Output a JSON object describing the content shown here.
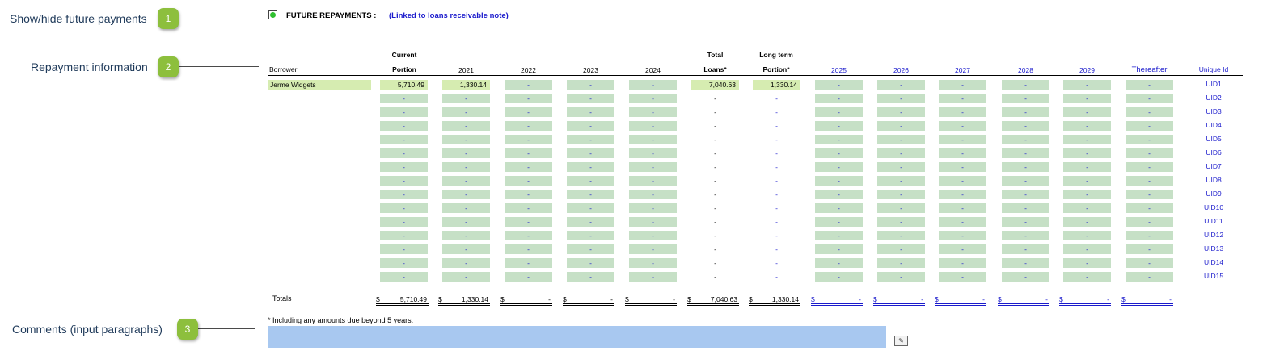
{
  "callouts": [
    {
      "number": "1",
      "label": "Show/hide future payments"
    },
    {
      "number": "2",
      "label": "Repayment information"
    },
    {
      "number": "3",
      "label": "Comments (input paragraphs)"
    }
  ],
  "section": {
    "title": "FUTURE REPAYMENTS :",
    "link": "(Linked to loans receivable note)"
  },
  "headers": {
    "borrower": "Borrower",
    "current_line1": "Current",
    "current_line2": "Portion",
    "y2021": "2021",
    "y2022": "2022",
    "y2023": "2023",
    "y2024": "2024",
    "total_line1": "Total",
    "total_line2": "Loans*",
    "longterm_line1": "Long term",
    "longterm_line2": "Portion*",
    "y2025": "2025",
    "y2026": "2026",
    "y2027": "2027",
    "y2028": "2028",
    "y2029": "2029",
    "thereafter": "Thereafter",
    "unique_id": "Unique Id"
  },
  "first_row": {
    "borrower": "Jerme Widgets",
    "current_portion": "5,710.49",
    "y2021": "1,330.14",
    "y2022": "-",
    "y2023": "-",
    "y2024": "-",
    "total_loans": "7,040.63",
    "long_term": "1,330.14",
    "y2025": "-",
    "y2026": "-",
    "y2027": "-",
    "y2028": "-",
    "y2029": "-",
    "thereafter": "-"
  },
  "empty_value": "-",
  "unique_ids": [
    "UID1",
    "UID2",
    "UID3",
    "UID4",
    "UID5",
    "UID6",
    "UID7",
    "UID8",
    "UID9",
    "UID10",
    "UID11",
    "UID12",
    "UID13",
    "UID14",
    "UID15"
  ],
  "totals": {
    "label": "Totals",
    "currency": "$",
    "current_portion": "5,710.49",
    "y2021": "1,330.14",
    "y2022": "-",
    "y2023": "-",
    "y2024": "-",
    "total_loans": "7,040.63",
    "long_term": "1,330.14",
    "y2025": "-",
    "y2026": "-",
    "y2027": "-",
    "y2028": "-",
    "y2029": "-",
    "thereafter": "-"
  },
  "footnote": "* Including any amounts due beyond 5 years.",
  "colors": {
    "badge": "#8dbf3d",
    "input_green": "#c6e0c6",
    "input_lime": "#d6ecb1",
    "link_blue": "#1a1acc",
    "comment_box": "#a8c8f0"
  }
}
